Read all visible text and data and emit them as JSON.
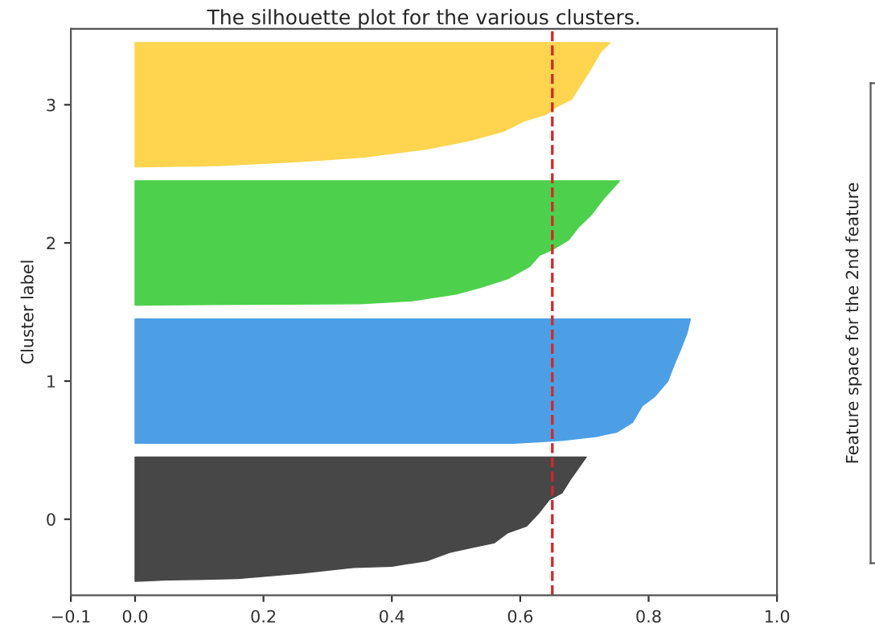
{
  "chart_data": [
    {
      "type": "area",
      "orientation": "horizontal",
      "title": "The silhouette plot for the various clusters.",
      "ylabel": "Cluster label",
      "xlim": [
        -0.1,
        1.0
      ],
      "xticks": [
        {
          "value": -0.1,
          "label": "−0.1"
        },
        {
          "value": 0.0,
          "label": "0.0"
        },
        0.2,
        0.4,
        0.6,
        0.8,
        {
          "value": 1.0,
          "label": "1.0"
        }
      ],
      "ylim": [
        -0.55,
        3.55
      ],
      "yticks": [
        0,
        1,
        2,
        3
      ],
      "series": [
        {
          "color": "#474747",
          "x": [
            -0.45,
            -0.44,
            -0.43,
            -0.39,
            -0.35,
            -0.34,
            -0.3,
            -0.24,
            -0.2,
            -0.17,
            -0.1,
            -0.05,
            0.05,
            0.14,
            0.19,
            0.3,
            0.45
          ],
          "values": [
            0.0,
            0.05,
            0.16,
            0.26,
            0.34,
            0.4,
            0.455,
            0.49,
            0.53,
            0.56,
            0.58,
            0.61,
            0.63,
            0.645,
            0.665,
            0.68,
            0.703
          ]
        },
        {
          "color": "#4c9fe5",
          "x": [
            0.55,
            0.57,
            0.6,
            0.63,
            0.7,
            0.82,
            0.89,
            1.0,
            1.12,
            1.23,
            1.35,
            1.45
          ],
          "values": [
            0.59,
            0.665,
            0.72,
            0.75,
            0.775,
            0.79,
            0.81,
            0.83,
            0.84,
            0.85,
            0.86,
            0.865
          ]
        },
        {
          "color": "#4dd14d",
          "x": [
            1.55,
            1.56,
            1.58,
            1.63,
            1.68,
            1.74,
            1.83,
            1.91,
            1.95,
            2.02,
            2.11,
            2.2,
            2.32,
            2.45
          ],
          "values": [
            0.0,
            0.35,
            0.43,
            0.5,
            0.54,
            0.58,
            0.615,
            0.63,
            0.65,
            0.675,
            0.69,
            0.71,
            0.73,
            0.755
          ]
        },
        {
          "color": "#ffd54f",
          "x": [
            2.55,
            2.56,
            2.59,
            2.62,
            2.68,
            2.74,
            2.81,
            2.88,
            2.93,
            2.98,
            3.04,
            3.15,
            3.26,
            3.38,
            3.45
          ],
          "values": [
            0.0,
            0.135,
            0.26,
            0.355,
            0.455,
            0.52,
            0.575,
            0.605,
            0.64,
            0.655,
            0.68,
            0.695,
            0.71,
            0.725,
            0.74
          ]
        }
      ],
      "ref_lines": [
        {
          "axis": "x",
          "value": 0.65,
          "color": "#d62728",
          "line_style": "dashed"
        }
      ],
      "grid": false
    },
    {
      "type": "other",
      "ylabel": "Feature space for the 2nd feature"
    }
  ]
}
